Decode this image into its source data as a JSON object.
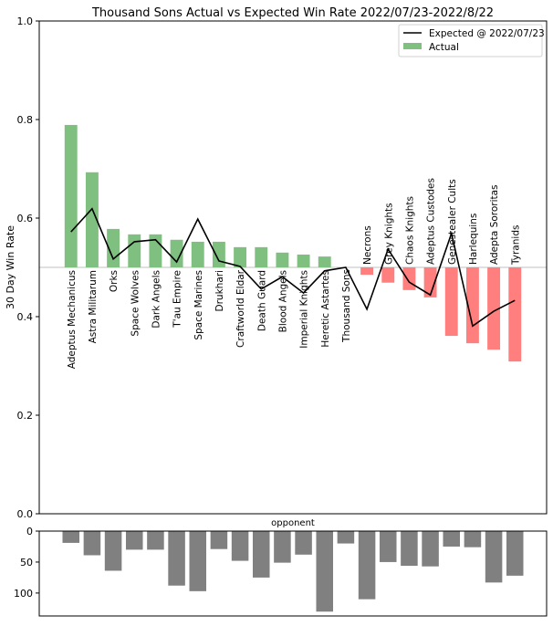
{
  "chart_data": [
    {
      "type": "bar",
      "title": "Thousand Sons Actual vs Expected Win Rate 2022/07/23-2022/8/22",
      "xlabel": "opponent",
      "ylabel": "30 Day Win Rate",
      "ylim": [
        0.0,
        1.0
      ],
      "yticks": [
        "0.0",
        "0.2",
        "0.4",
        "0.6",
        "0.8",
        "1.0"
      ],
      "ytick_values": [
        0.0,
        0.2,
        0.4,
        0.6,
        0.8,
        1.0
      ],
      "baseline": 0.5,
      "legend": {
        "placement": "top-right",
        "entries": [
          {
            "label": "Expected @ 2022/07/23",
            "kind": "line",
            "color": "#000000"
          },
          {
            "label": "Actual",
            "kind": "bar",
            "color": "#7fbf7f"
          }
        ]
      },
      "colors": {
        "above": "#7fbf7f",
        "below": "#ff7f7f",
        "line": "#000000",
        "baseline": "#c0c0c0"
      },
      "categories": [
        "Adeptus Mechanicus",
        "Astra Militarum",
        "Orks",
        "Space Wolves",
        "Dark Angels",
        "T'au Empire",
        "Space Marines",
        "Drukhari",
        "Craftworld Eldar",
        "Death Guard",
        "Blood Angels",
        "Imperial Knights",
        "Heretic Astartes",
        "Thousand Sons",
        "Necrons",
        "Grey Knights",
        "Chaos Knights",
        "Adeptus Custodes",
        "Genestealer Cults",
        "Harlequins",
        "Adepta Sororitas",
        "Tyranids"
      ],
      "series": [
        {
          "name": "Actual",
          "type": "bar",
          "values": [
            0.789,
            0.693,
            0.578,
            0.567,
            0.567,
            0.556,
            0.552,
            0.552,
            0.541,
            0.541,
            0.53,
            0.526,
            0.522,
            0.5,
            0.485,
            0.469,
            0.454,
            0.439,
            0.361,
            0.346,
            0.333,
            0.309
          ]
        },
        {
          "name": "Expected @ 2022/07/23",
          "type": "line",
          "values": [
            0.572,
            0.619,
            0.517,
            0.552,
            0.556,
            0.511,
            0.598,
            0.513,
            0.502,
            0.456,
            0.481,
            0.448,
            0.493,
            0.5,
            0.415,
            0.537,
            0.47,
            0.444,
            0.569,
            0.381,
            0.411,
            0.433
          ]
        }
      ]
    },
    {
      "type": "bar",
      "title": "",
      "xlabel": "",
      "ylabel": "",
      "ylim": [
        137,
        0
      ],
      "inverted_y": true,
      "yticks": [
        "0",
        "50",
        "100"
      ],
      "ytick_values": [
        0,
        50,
        100
      ],
      "color": "#808080",
      "categories": [
        "Adeptus Mechanicus",
        "Astra Militarum",
        "Orks",
        "Space Wolves",
        "Dark Angels",
        "T'au Empire",
        "Space Marines",
        "Drukhari",
        "Craftworld Eldar",
        "Death Guard",
        "Blood Angels",
        "Imperial Knights",
        "Heretic Astartes",
        "Thousand Sons",
        "Necrons",
        "Grey Knights",
        "Chaos Knights",
        "Adeptus Custodes",
        "Genestealer Cults",
        "Harlequins",
        "Adepta Sororitas",
        "Tyranids"
      ],
      "values": [
        19,
        39,
        64,
        30,
        30,
        88,
        97,
        29,
        48,
        75,
        51,
        38,
        130,
        20,
        110,
        50,
        56,
        57,
        25,
        26,
        83,
        72
      ]
    }
  ]
}
